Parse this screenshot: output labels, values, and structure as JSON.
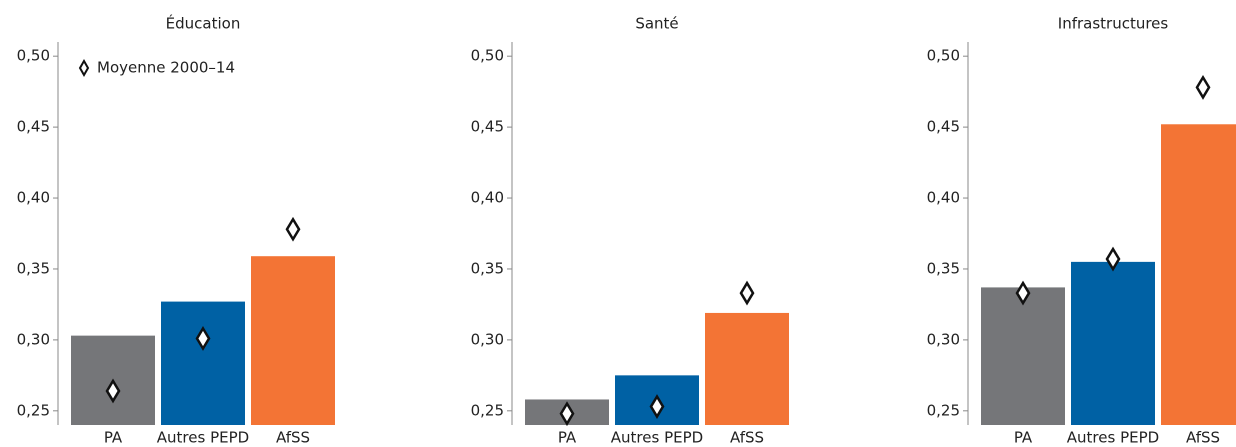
{
  "chart_data": [
    {
      "type": "bar",
      "title": "Éducation",
      "categories": [
        "PA",
        "Autres PEPD",
        "AfSS"
      ],
      "colors": [
        "#757679",
        "#0061a4",
        "#f37435"
      ],
      "values": [
        0.303,
        0.327,
        0.359
      ],
      "markers": {
        "name": "Moyenne 2000–14",
        "values": [
          0.264,
          0.301,
          0.378
        ]
      },
      "ylim": [
        0.24,
        0.51
      ],
      "yticks": [
        {
          "value": 0.25,
          "label": "0,25"
        },
        {
          "value": 0.3,
          "label": "0,30"
        },
        {
          "value": 0.35,
          "label": "0,35"
        },
        {
          "value": 0.4,
          "label": "0,40"
        },
        {
          "value": 0.45,
          "label": "0,45"
        },
        {
          "value": 0.5,
          "label": "0,50"
        }
      ]
    },
    {
      "type": "bar",
      "title": "Santé",
      "categories": [
        "PA",
        "Autres PEPD",
        "AfSS"
      ],
      "colors": [
        "#757679",
        "#0061a4",
        "#f37435"
      ],
      "values": [
        0.258,
        0.275,
        0.319
      ],
      "markers": {
        "values": [
          0.248,
          0.253,
          0.333
        ]
      },
      "ylim": [
        0.24,
        0.51
      ],
      "yticks": [
        {
          "value": 0.25,
          "label": "0,25"
        },
        {
          "value": 0.3,
          "label": "0,30"
        },
        {
          "value": 0.35,
          "label": "0,35"
        },
        {
          "value": 0.4,
          "label": "0,40"
        },
        {
          "value": 0.45,
          "label": "0,45"
        },
        {
          "value": 0.5,
          "label": "0,50"
        }
      ]
    },
    {
      "type": "bar",
      "title": "Infrastructures",
      "categories": [
        "PA",
        "Autres PEPD",
        "AfSS"
      ],
      "colors": [
        "#757679",
        "#0061a4",
        "#f37435"
      ],
      "values": [
        0.337,
        0.355,
        0.452
      ],
      "markers": {
        "values": [
          0.333,
          0.357,
          0.478
        ]
      },
      "ylim": [
        0.24,
        0.51
      ],
      "yticks": [
        {
          "value": 0.25,
          "label": "0,25"
        },
        {
          "value": 0.3,
          "label": "0,30"
        },
        {
          "value": 0.35,
          "label": "0,35"
        },
        {
          "value": 0.4,
          "label": "0,40"
        },
        {
          "value": 0.45,
          "label": "0,45"
        },
        {
          "value": 0.5,
          "label": "0,50"
        }
      ]
    }
  ]
}
